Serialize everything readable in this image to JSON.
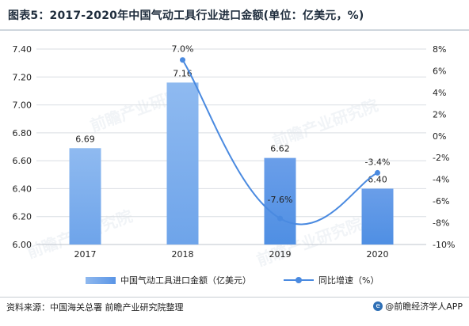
{
  "title": "图表5：2017-2020年中国气动工具行业进口金额(单位：亿美元，%)",
  "source": "资料来源：中国海关总署 前瞻产业研究院整理",
  "brand": "@前瞻经济学人APP",
  "watermark": "前瞻产业研究院",
  "colors": {
    "bar": "#6ea4ea",
    "bar_dark": "#4f8fe3",
    "line": "#4a8ae0",
    "grid": "#d9dde2"
  },
  "chart_data": {
    "type": "bar",
    "categories": [
      "2017",
      "2018",
      "2019",
      "2020"
    ],
    "series": [
      {
        "name": "中国气动工具进口金额（亿美元）",
        "type": "bar",
        "axis": "left",
        "values": [
          6.69,
          7.16,
          6.62,
          6.4
        ],
        "labels": [
          "6.69",
          "7.16",
          "6.62",
          "6.40"
        ]
      },
      {
        "name": "同比增速（%）",
        "type": "line",
        "axis": "right",
        "values": [
          null,
          7.0,
          -7.6,
          -3.4
        ],
        "labels": [
          "",
          "7.0%",
          "-7.6%",
          "-3.4%"
        ]
      }
    ],
    "y_left": {
      "min": 6.0,
      "max": 7.4,
      "ticks": [
        "6.00",
        "6.20",
        "6.40",
        "6.60",
        "6.80",
        "7.00",
        "7.20",
        "7.40"
      ]
    },
    "y_right": {
      "min": -10,
      "max": 8,
      "ticks": [
        "-10%",
        "-8%",
        "-6%",
        "-4%",
        "-2%",
        "0%",
        "2%",
        "4%",
        "6%",
        "8%"
      ]
    },
    "grid": true,
    "legend": "bottom"
  }
}
